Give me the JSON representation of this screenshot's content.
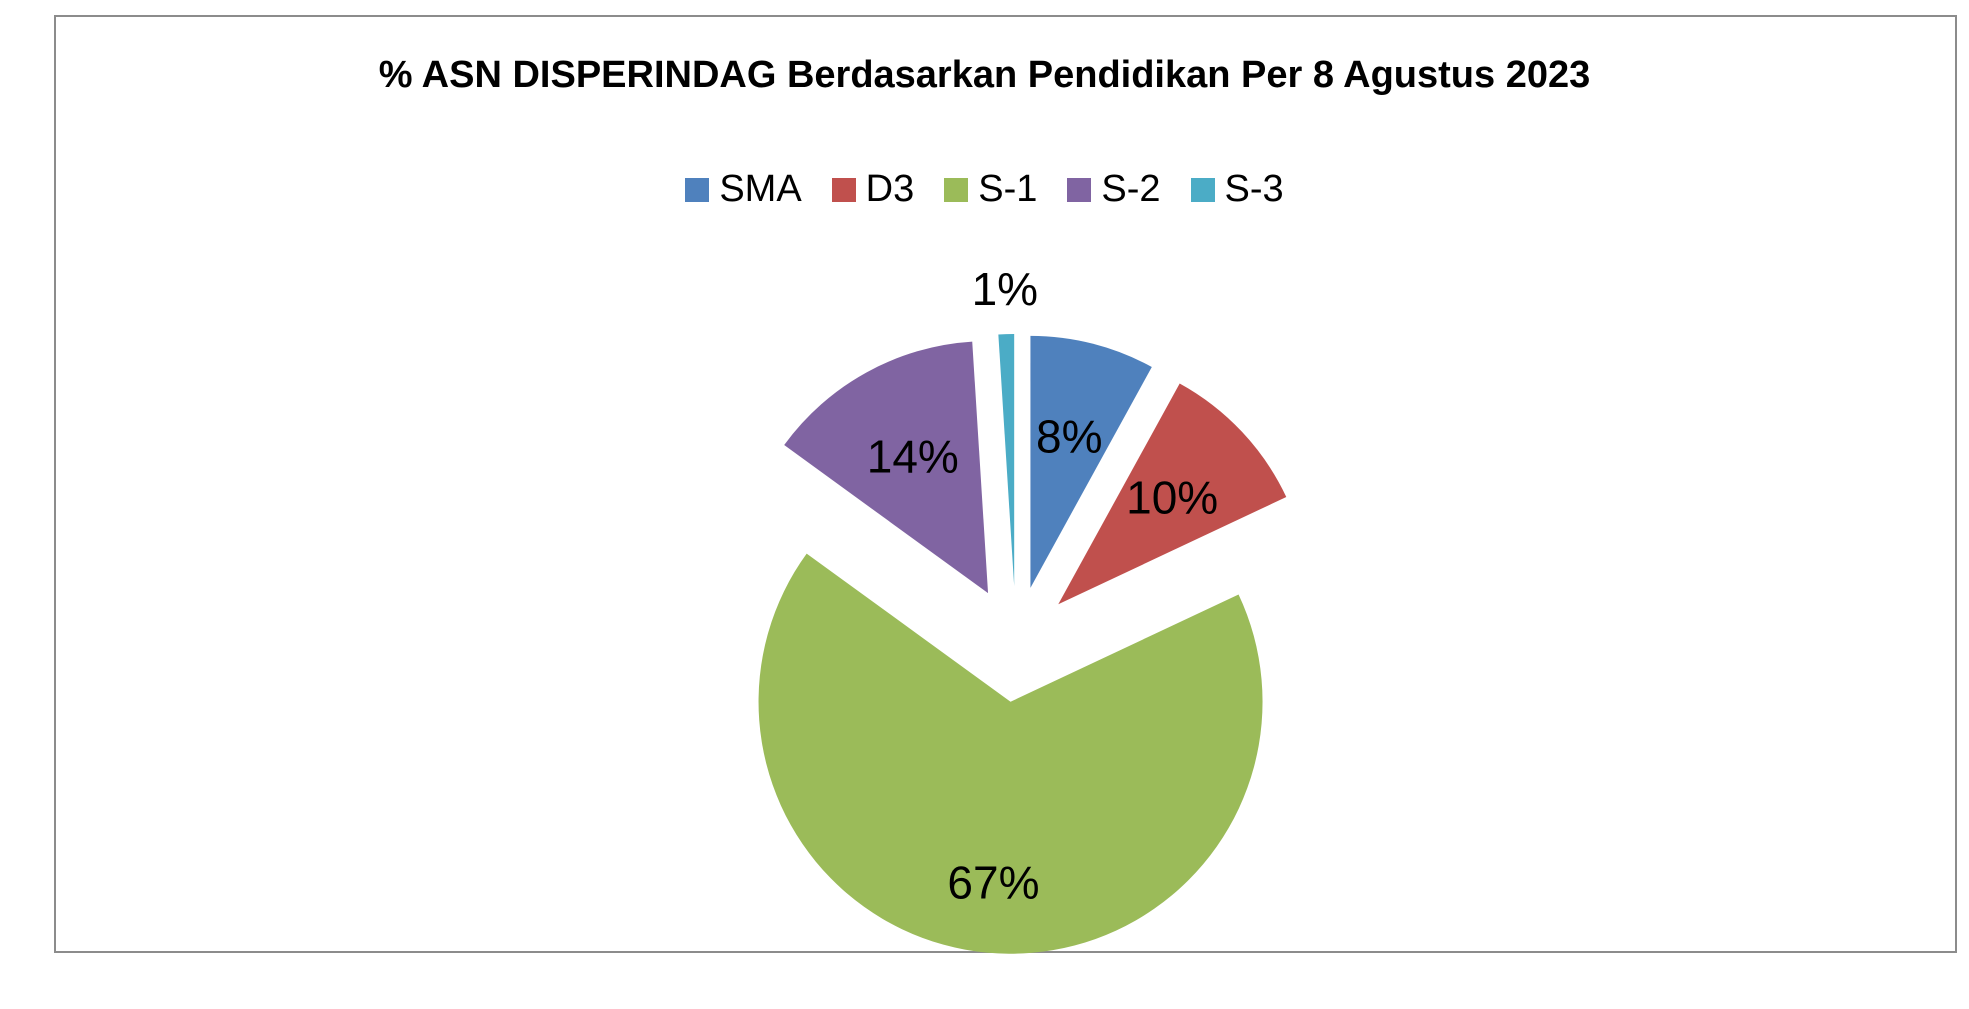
{
  "chart_data": {
    "type": "pie",
    "title": "% ASN DISPERINDAG Berdasarkan Pendidikan Per 8 Agustus 2023",
    "categories": [
      "SMA",
      "D3",
      "S-1",
      "S-2",
      "S-3"
    ],
    "values": [
      8,
      10,
      67,
      14,
      1
    ],
    "data_labels": [
      "8%",
      "10%",
      "67%",
      "14%",
      "1%"
    ],
    "colors": [
      "#4F81BD",
      "#C0504D",
      "#9BBB59",
      "#8064A2",
      "#4BACC6"
    ],
    "exploded": true,
    "start_angle": "12 o'clock, clockwise",
    "legend_position": "top"
  }
}
